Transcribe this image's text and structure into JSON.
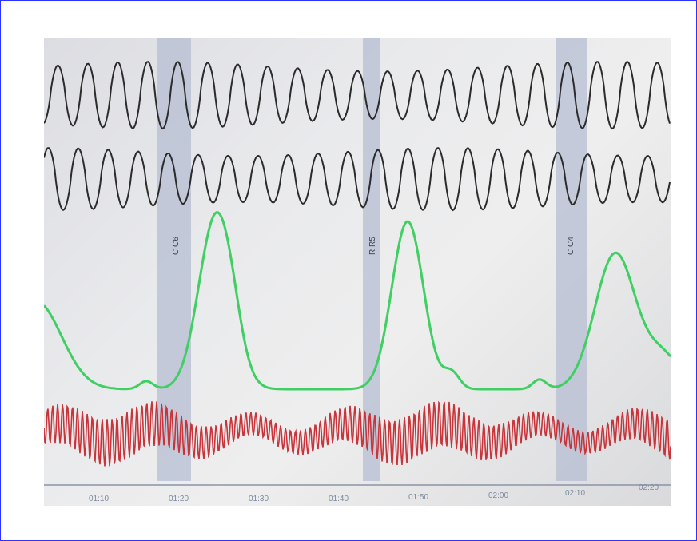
{
  "markers": [
    {
      "label": "C C6"
    },
    {
      "label": "R R5"
    },
    {
      "label": "C C4"
    }
  ],
  "time_axis": {
    "ticks": [
      "01:10",
      "01:20",
      "01:30",
      "01:40",
      "01:50",
      "02:00",
      "02:10",
      "02:20"
    ]
  },
  "colors": {
    "frame_border": "#2a33ff",
    "breathing_traces": "#2b2b2b",
    "green_trace": "#3fcf62",
    "red_trace": "#c8343a",
    "marker_band": "#b6bdd1"
  }
}
